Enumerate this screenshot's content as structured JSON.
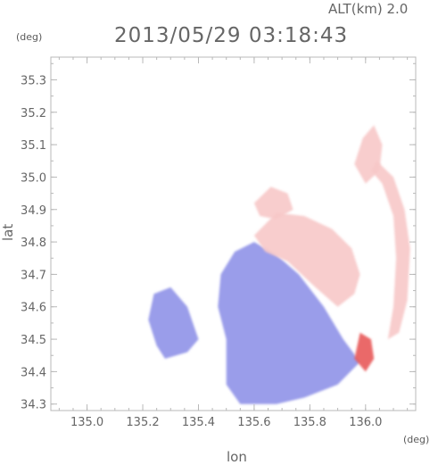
{
  "chart_data": {
    "type": "heatmap",
    "title": "2013/05/29 03:18:43",
    "altitude_label": "ALT(km) 2.0",
    "xlabel": "lon",
    "ylabel": "lat",
    "x_unit": "(deg)",
    "y_unit": "(deg)",
    "xlim": [
      134.87,
      136.18
    ],
    "ylim": [
      34.28,
      35.37
    ],
    "xticks": [
      135.0,
      135.2,
      135.4,
      135.6,
      135.8,
      136.0
    ],
    "yticks": [
      34.3,
      34.4,
      34.5,
      34.6,
      34.7,
      34.8,
      34.9,
      35.0,
      35.1,
      35.2,
      35.3
    ],
    "colors": {
      "negative": "#8f92e8",
      "negative_light": "#c4c6f2",
      "positive": "#f08a8a",
      "positive_light": "#f7c8c8",
      "strong_positive": "#e85a5a",
      "axis": "#b8b8b8"
    },
    "regions": [
      {
        "name": "blue-main",
        "sign": "negative",
        "points": [
          [
            135.48,
            34.7
          ],
          [
            135.53,
            34.77
          ],
          [
            135.6,
            34.8
          ],
          [
            135.68,
            34.76
          ],
          [
            135.76,
            34.7
          ],
          [
            135.85,
            34.6
          ],
          [
            135.92,
            34.5
          ],
          [
            135.98,
            34.43
          ],
          [
            135.9,
            34.36
          ],
          [
            135.78,
            34.32
          ],
          [
            135.68,
            34.3
          ],
          [
            135.55,
            34.3
          ],
          [
            135.5,
            34.36
          ],
          [
            135.5,
            34.5
          ],
          [
            135.47,
            34.6
          ]
        ]
      },
      {
        "name": "blue-west",
        "sign": "negative",
        "points": [
          [
            135.24,
            34.64
          ],
          [
            135.3,
            34.66
          ],
          [
            135.36,
            34.6
          ],
          [
            135.4,
            34.5
          ],
          [
            135.36,
            34.46
          ],
          [
            135.28,
            34.44
          ],
          [
            135.25,
            34.48
          ],
          [
            135.22,
            34.56
          ]
        ]
      },
      {
        "name": "pink-main",
        "sign": "positive_light",
        "points": [
          [
            135.6,
            34.82
          ],
          [
            135.68,
            34.89
          ],
          [
            135.78,
            34.88
          ],
          [
            135.88,
            34.84
          ],
          [
            135.95,
            34.78
          ],
          [
            135.98,
            34.7
          ],
          [
            135.96,
            34.64
          ],
          [
            135.9,
            34.6
          ],
          [
            135.82,
            34.66
          ],
          [
            135.72,
            34.74
          ],
          [
            135.64,
            34.77
          ]
        ]
      },
      {
        "name": "pink-east-arc",
        "sign": "positive_light",
        "points": [
          [
            136.04,
            35.05
          ],
          [
            136.1,
            35.0
          ],
          [
            136.14,
            34.9
          ],
          [
            136.16,
            34.78
          ],
          [
            136.15,
            34.62
          ],
          [
            136.12,
            34.52
          ],
          [
            136.08,
            34.5
          ],
          [
            136.1,
            34.6
          ],
          [
            136.11,
            34.75
          ],
          [
            136.1,
            34.88
          ],
          [
            136.06,
            34.98
          ],
          [
            136.02,
            35.02
          ]
        ]
      },
      {
        "name": "pink-north",
        "sign": "positive_light",
        "points": [
          [
            135.99,
            35.12
          ],
          [
            136.03,
            35.16
          ],
          [
            136.06,
            35.1
          ],
          [
            136.05,
            35.02
          ],
          [
            136.0,
            34.98
          ],
          [
            135.96,
            35.04
          ]
        ]
      },
      {
        "name": "pink-northwest",
        "sign": "positive_light",
        "points": [
          [
            135.6,
            34.92
          ],
          [
            135.66,
            34.97
          ],
          [
            135.72,
            34.95
          ],
          [
            135.74,
            34.9
          ],
          [
            135.68,
            34.87
          ],
          [
            135.62,
            34.88
          ]
        ]
      },
      {
        "name": "red-southeast",
        "sign": "strong_positive",
        "points": [
          [
            135.98,
            34.52
          ],
          [
            136.02,
            34.5
          ],
          [
            136.03,
            34.44
          ],
          [
            136.0,
            34.4
          ],
          [
            135.96,
            34.44
          ]
        ]
      }
    ]
  }
}
